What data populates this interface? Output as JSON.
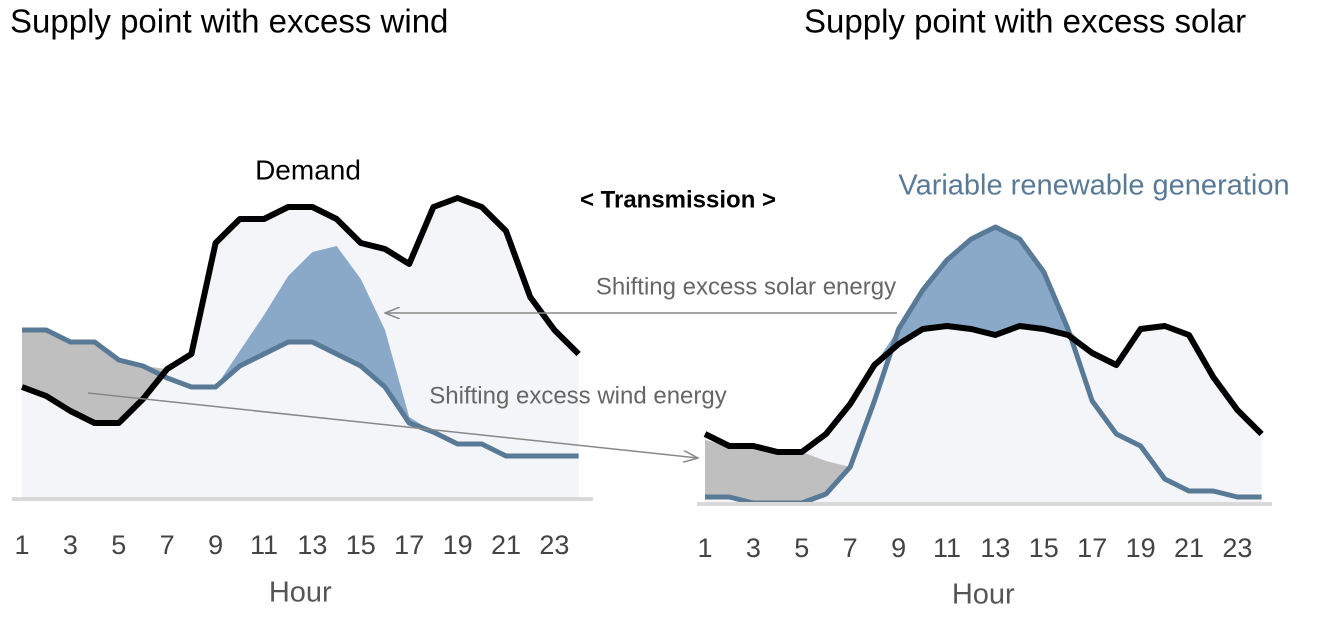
{
  "label": "< Transmission >",
  "chart_data": [
    {
      "type": "line",
      "title": "Supply point with excess wind",
      "x_label": "Hour",
      "annotations": [
        "Demand",
        "Shifting excess wind energy"
      ],
      "categories": [
        "1",
        null,
        "3",
        null,
        "5",
        null,
        "7",
        null,
        "9",
        null,
        "11",
        null,
        "13",
        null,
        "15",
        null,
        "17",
        null,
        "19",
        null,
        "21",
        null,
        "23",
        null
      ],
      "ylim": [
        0,
        100
      ],
      "series": [
        {
          "name": "Demand",
          "color": "#000000",
          "values": [
            37,
            34,
            29,
            25,
            25,
            33,
            43,
            48,
            85,
            93,
            93,
            97,
            97,
            93,
            85,
            83,
            78,
            97,
            100,
            97,
            89,
            67,
            56,
            48
          ]
        },
        {
          "name": "Variable renewable generation",
          "color": "#587a97",
          "values": [
            56,
            56,
            52,
            52,
            46,
            44,
            40,
            37,
            37,
            44,
            48,
            52,
            52,
            48,
            44,
            37,
            25,
            22,
            18,
            18,
            14,
            14,
            14,
            14
          ]
        }
      ]
    },
    {
      "type": "line",
      "title": "Supply point with excess solar",
      "x_label": "Hour",
      "annotations": [
        "Variable renewable generation",
        "Shifting excess solar energy"
      ],
      "categories": [
        "1",
        null,
        "3",
        null,
        "5",
        null,
        "7",
        null,
        "9",
        null,
        "11",
        null,
        "13",
        null,
        "15",
        null,
        "17",
        null,
        "19",
        null,
        "21",
        null,
        "23",
        null
      ],
      "ylim": [
        0,
        100
      ],
      "series": [
        {
          "name": "Demand",
          "color": "#000000",
          "values": [
            23,
            19,
            19,
            17,
            17,
            23,
            33,
            46,
            53,
            58,
            59,
            58,
            56,
            59,
            58,
            56,
            50,
            46,
            58,
            59,
            56,
            42,
            31,
            23
          ]
        },
        {
          "name": "Variable renewable generation",
          "color": "#587a97",
          "values": [
            2,
            2,
            0,
            0,
            0,
            3,
            12,
            34,
            58,
            71,
            81,
            88,
            92,
            88,
            77,
            58,
            34,
            23,
            19,
            8,
            4,
            4,
            2,
            2
          ]
        }
      ]
    }
  ]
}
